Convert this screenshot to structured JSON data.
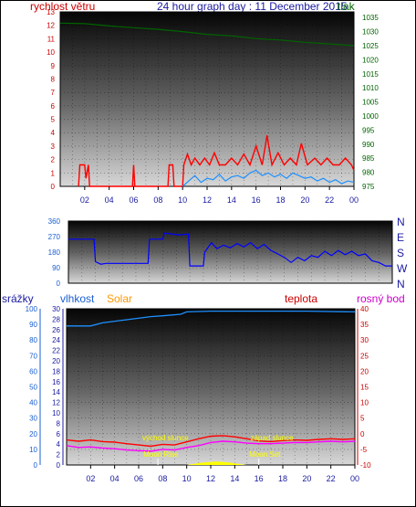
{
  "header": {
    "title": "24 hour graph day : 11 December 2015",
    "left_label": "rychlost větru",
    "right_label": "tlak"
  },
  "colors": {
    "wind": "#ff0000",
    "gust": "#1e90ff",
    "pressure": "#006400",
    "direction": "#0000ff",
    "humidity": "#1e90ff",
    "temperature": "#ff0000",
    "dewpoint": "#ff00ff",
    "solar": "#ffff00",
    "annotation": "#ffff00",
    "axis_red": "#cc0000",
    "axis_blue": "#1a5fd0",
    "axis_green": "#006400",
    "axis_pink": "#cc00cc",
    "solar_label": "#ff9900"
  },
  "x_ticks": [
    "02",
    "04",
    "06",
    "08",
    "10",
    "12",
    "14",
    "16",
    "18",
    "20",
    "22",
    "00"
  ],
  "chart_data": [
    {
      "type": "line",
      "title": "24 hour graph day : 11 December 2015",
      "x_range_hours": [
        0,
        24
      ],
      "left_axis": {
        "label": "rychlost větru",
        "range": [
          0,
          13
        ],
        "ticks": [
          "0",
          "1",
          "2",
          "3",
          "4",
          "5",
          "6",
          "7",
          "8",
          "9",
          "10",
          "11",
          "12",
          "13"
        ]
      },
      "right_axis": {
        "label": "tlak",
        "range": [
          975,
          1037
        ],
        "ticks": [
          "975",
          "980",
          "985",
          "990",
          "995",
          "1000",
          "1005",
          "1010",
          "1015",
          "1020",
          "1025",
          "1030",
          "1035"
        ]
      },
      "series": [
        {
          "name": "rychlost větru",
          "axis": "left",
          "points": [
            [
              1.5,
              0
            ],
            [
              1.6,
              1.6
            ],
            [
              2.0,
              1.6
            ],
            [
              2.1,
              0.6
            ],
            [
              2.3,
              1.6
            ],
            [
              2.4,
              0
            ],
            [
              5.9,
              0
            ],
            [
              6.0,
              1.6
            ],
            [
              6.1,
              0
            ],
            [
              8.8,
              0
            ],
            [
              8.9,
              1.6
            ],
            [
              9.2,
              1.6
            ],
            [
              9.3,
              0
            ],
            [
              10.0,
              0
            ],
            [
              10.1,
              1.6
            ],
            [
              10.4,
              2.4
            ],
            [
              10.7,
              1.6
            ],
            [
              11.0,
              2.1
            ],
            [
              11.4,
              1.6
            ],
            [
              11.8,
              2.1
            ],
            [
              12.2,
              1.6
            ],
            [
              12.6,
              2.5
            ],
            [
              13.0,
              1.6
            ],
            [
              13.5,
              1.6
            ],
            [
              14.0,
              2.1
            ],
            [
              14.5,
              1.6
            ],
            [
              15.0,
              2.4
            ],
            [
              15.5,
              1.6
            ],
            [
              16.0,
              3.0
            ],
            [
              16.5,
              1.6
            ],
            [
              16.9,
              3.8
            ],
            [
              17.3,
              1.6
            ],
            [
              17.8,
              2.5
            ],
            [
              18.3,
              1.6
            ],
            [
              18.8,
              2.1
            ],
            [
              19.3,
              1.6
            ],
            [
              19.7,
              3.2
            ],
            [
              20.2,
              1.6
            ],
            [
              20.8,
              2.1
            ],
            [
              21.3,
              1.6
            ],
            [
              21.8,
              2.1
            ],
            [
              22.3,
              1.6
            ],
            [
              22.8,
              1.6
            ],
            [
              23.3,
              2.1
            ],
            [
              23.8,
              1.6
            ],
            [
              24.0,
              1.2
            ]
          ]
        },
        {
          "name": "náraz",
          "axis": "left",
          "points": [
            [
              10.0,
              0
            ],
            [
              10.5,
              0.4
            ],
            [
              11.0,
              0.8
            ],
            [
              11.5,
              0.3
            ],
            [
              12.0,
              0.6
            ],
            [
              12.5,
              0.5
            ],
            [
              13.0,
              0.9
            ],
            [
              13.5,
              0.4
            ],
            [
              14.0,
              0.7
            ],
            [
              14.5,
              0.8
            ],
            [
              15.0,
              0.6
            ],
            [
              15.5,
              1.0
            ],
            [
              16.0,
              1.2
            ],
            [
              16.5,
              0.8
            ],
            [
              17.0,
              1.0
            ],
            [
              17.5,
              0.7
            ],
            [
              18.0,
              0.9
            ],
            [
              18.5,
              0.6
            ],
            [
              19.0,
              1.0
            ],
            [
              19.5,
              0.8
            ],
            [
              20.0,
              0.6
            ],
            [
              20.5,
              0.7
            ],
            [
              21.0,
              0.4
            ],
            [
              21.5,
              0.6
            ],
            [
              22.0,
              0.3
            ],
            [
              22.5,
              0.5
            ],
            [
              23.0,
              0.2
            ],
            [
              23.5,
              0.4
            ],
            [
              24.0,
              0.3
            ]
          ]
        },
        {
          "name": "tlak",
          "axis": "right",
          "points": [
            [
              0,
              1033.0
            ],
            [
              2,
              1032.8
            ],
            [
              4,
              1032.0
            ],
            [
              6,
              1031.4
            ],
            [
              8,
              1030.8
            ],
            [
              10,
              1030.0
            ],
            [
              12,
              1029.0
            ],
            [
              14,
              1028.5
            ],
            [
              16,
              1027.5
            ],
            [
              18,
              1027.0
            ],
            [
              20,
              1026.2
            ],
            [
              22,
              1025.6
            ],
            [
              24,
              1025.0
            ]
          ]
        }
      ]
    },
    {
      "type": "line",
      "left_axis": {
        "range": [
          0,
          360
        ],
        "ticks": [
          "0",
          "90",
          "180",
          "270",
          "360"
        ]
      },
      "right_axis_labels": [
        "N",
        "W",
        "S",
        "E",
        "N"
      ],
      "series": [
        {
          "name": "směr větru",
          "points": [
            [
              0,
              255
            ],
            [
              1.9,
              255
            ],
            [
              2.0,
              125
            ],
            [
              2.4,
              110
            ],
            [
              2.8,
              115
            ],
            [
              5.9,
              115
            ],
            [
              6.0,
              255
            ],
            [
              7.0,
              255
            ],
            [
              7.1,
              290
            ],
            [
              8.2,
              280
            ],
            [
              8.9,
              285
            ],
            [
              9.0,
              100
            ],
            [
              10.0,
              100
            ],
            [
              10.1,
              180
            ],
            [
              10.6,
              235
            ],
            [
              11.0,
              200
            ],
            [
              11.5,
              220
            ],
            [
              12.0,
              205
            ],
            [
              12.5,
              230
            ],
            [
              13.0,
              210
            ],
            [
              13.5,
              235
            ],
            [
              14.0,
              200
            ],
            [
              14.5,
              225
            ],
            [
              15.0,
              190
            ],
            [
              15.5,
              170
            ],
            [
              16.0,
              150
            ],
            [
              16.5,
              120
            ],
            [
              17.0,
              150
            ],
            [
              17.5,
              130
            ],
            [
              18.0,
              160
            ],
            [
              18.5,
              150
            ],
            [
              19.0,
              185
            ],
            [
              19.5,
              160
            ],
            [
              20.0,
              190
            ],
            [
              20.5,
              165
            ],
            [
              21.0,
              185
            ],
            [
              21.5,
              160
            ],
            [
              22.0,
              170
            ],
            [
              22.5,
              130
            ],
            [
              23.0,
              120
            ],
            [
              23.5,
              100
            ],
            [
              24.0,
              100
            ]
          ]
        }
      ]
    },
    {
      "type": "line",
      "labels": {
        "rain": "srážky",
        "humidity": "vlhkost",
        "solar": "Solar",
        "temperature": "teplota",
        "dewpoint": "rosný bod"
      },
      "left_axis_rain": {
        "range": [
          0,
          100
        ],
        "ticks": [
          "0",
          "10",
          "20",
          "30",
          "40",
          "50",
          "60",
          "70",
          "80",
          "90",
          "100"
        ]
      },
      "left_axis_humidity": {
        "range": [
          0,
          30
        ],
        "ticks": [
          "0",
          "2",
          "4",
          "6",
          "8",
          "10",
          "12",
          "14",
          "16",
          "18",
          "20",
          "22",
          "24",
          "26",
          "28",
          "30"
        ]
      },
      "right_axis_temperature": {
        "range": [
          -10,
          40
        ],
        "ticks": [
          "-10",
          "-5",
          "0",
          "5",
          "10",
          "15",
          "20",
          "25",
          "30",
          "35",
          "40"
        ]
      },
      "annotations": [
        "východ slunce",
        "západ slunce",
        "Moon Rise",
        "Moon Set"
      ],
      "series": [
        {
          "name": "vlhkost",
          "points": [
            [
              0,
              89
            ],
            [
              2,
              89
            ],
            [
              3,
              91
            ],
            [
              5,
              93
            ],
            [
              7,
              95
            ],
            [
              8,
              95.5
            ],
            [
              9.5,
              96.5
            ],
            [
              10,
              98
            ],
            [
              12,
              98.5
            ],
            [
              16,
              98.5
            ],
            [
              20,
              98.5
            ],
            [
              24,
              98
            ]
          ]
        },
        {
          "name": "teplota",
          "points": [
            [
              0,
              -2.0
            ],
            [
              1,
              -2.4
            ],
            [
              2,
              -2.0
            ],
            [
              3,
              -2.5
            ],
            [
              4,
              -2.7
            ],
            [
              5,
              -3.2
            ],
            [
              6,
              -3.6
            ],
            [
              7,
              -4.0
            ],
            [
              8,
              -3.4
            ],
            [
              9,
              -3.6
            ],
            [
              10,
              -2.6
            ],
            [
              11,
              -1.6
            ],
            [
              12,
              -0.8
            ],
            [
              13,
              -0.6
            ],
            [
              14,
              -1.0
            ],
            [
              15,
              -1.6
            ],
            [
              16,
              -2.3
            ],
            [
              17,
              -2.5
            ],
            [
              18,
              -2.2
            ],
            [
              19,
              -2.0
            ],
            [
              20,
              -2.1
            ],
            [
              21,
              -1.8
            ],
            [
              22,
              -1.6
            ],
            [
              23,
              -1.8
            ],
            [
              24,
              -1.6
            ]
          ]
        },
        {
          "name": "rosný bod",
          "points": [
            [
              0,
              -3.8
            ],
            [
              1,
              -4.4
            ],
            [
              2,
              -4.2
            ],
            [
              3,
              -4.6
            ],
            [
              4,
              -4.8
            ],
            [
              5,
              -5.2
            ],
            [
              6,
              -5.4
            ],
            [
              7,
              -5.6
            ],
            [
              8,
              -5.0
            ],
            [
              9,
              -5.2
            ],
            [
              10,
              -4.4
            ],
            [
              11,
              -3.8
            ],
            [
              12,
              -2.8
            ],
            [
              13,
              -2.4
            ],
            [
              14,
              -2.6
            ],
            [
              15,
              -3.0
            ],
            [
              16,
              -3.2
            ],
            [
              17,
              -3.2
            ],
            [
              18,
              -3.0
            ],
            [
              19,
              -2.8
            ],
            [
              20,
              -2.8
            ],
            [
              21,
              -2.6
            ],
            [
              22,
              -2.4
            ],
            [
              23,
              -2.6
            ],
            [
              24,
              -2.4
            ]
          ]
        },
        {
          "name": "Solar",
          "points": [
            [
              10.0,
              0
            ],
            [
              10.5,
              0.6
            ],
            [
              11.0,
              1.2
            ],
            [
              11.5,
              1.6
            ],
            [
              12.0,
              2.0
            ],
            [
              12.5,
              2.2
            ],
            [
              13.0,
              2.0
            ],
            [
              13.5,
              1.6
            ],
            [
              14.0,
              1.0
            ],
            [
              14.5,
              0.4
            ],
            [
              15.0,
              0
            ]
          ]
        }
      ]
    }
  ]
}
